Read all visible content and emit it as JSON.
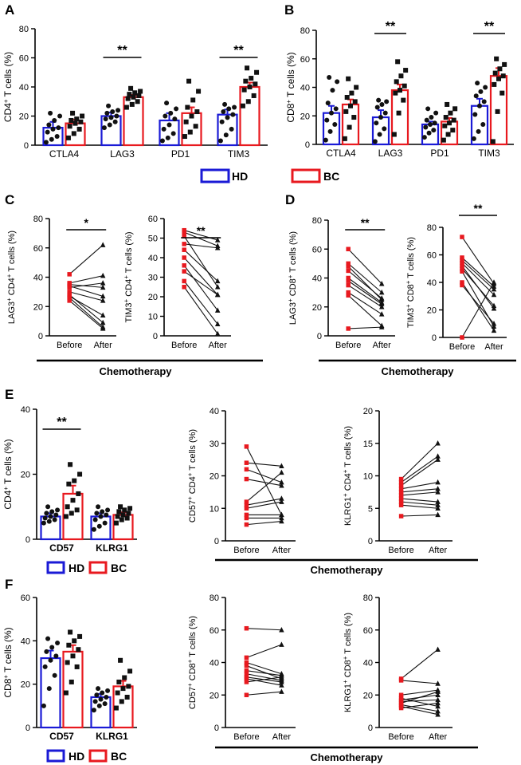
{
  "colors": {
    "hd": "#1a1ad6",
    "bc": "#e8191f",
    "dark": "#111111"
  },
  "chart_data": [
    {
      "type": "bar",
      "panel": "A",
      "ylabel": "CD4+ T cells (%)",
      "ylabel_base": "CD4",
      "ylabel_sup": "+",
      "ylabel_rest": " T cells (%)",
      "ylim": [
        0,
        80
      ],
      "yticks": [
        0,
        20,
        40,
        60,
        80
      ],
      "categories": [
        "CTLA4",
        "LAG3",
        "PD1",
        "TIM3"
      ],
      "series": [
        {
          "name": "HD",
          "values": [
            12,
            20,
            17,
            21
          ],
          "sem": [
            4,
            2.5,
            5,
            3.5
          ],
          "points": [
            [
              2,
              4,
              6,
              9,
              11,
              12,
              14,
              17,
              20,
              22
            ],
            [
              12,
              14,
              16,
              18,
              19,
              20,
              22,
              23,
              24,
              27
            ],
            [
              3,
              5,
              8,
              11,
              14,
              18,
              20,
              22,
              25,
              29
            ],
            [
              3,
              7,
              11,
              16,
              19,
              21,
              23,
              25,
              26,
              28
            ]
          ]
        },
        {
          "name": "BC",
          "values": [
            15,
            33,
            22,
            40
          ],
          "sem": [
            2.5,
            1.5,
            4,
            3
          ],
          "points": [
            [
              5,
              8,
              11,
              13,
              15,
              16,
              17,
              18,
              20,
              22
            ],
            [
              26,
              28,
              30,
              32,
              33,
              34,
              35,
              36,
              37,
              39
            ],
            [
              6,
              9,
              13,
              16,
              20,
              23,
              26,
              31,
              37,
              44
            ],
            [
              27,
              30,
              34,
              38,
              40,
              42,
              44,
              46,
              50,
              53
            ]
          ]
        }
      ],
      "annotations": [
        {
          "group": "LAG3",
          "text": "**"
        },
        {
          "group": "TIM3",
          "text": "**"
        }
      ]
    },
    {
      "type": "bar",
      "panel": "B",
      "ylabel": "CD8+ T cells (%)",
      "ylabel_base": "CD8",
      "ylabel_sup": "+",
      "ylabel_rest": " T cells (%)",
      "ylim": [
        0,
        80
      ],
      "yticks": [
        0,
        20,
        40,
        60,
        80
      ],
      "categories": [
        "CTLA4",
        "LAG3",
        "PD1",
        "TIM3"
      ],
      "series": [
        {
          "name": "HD",
          "values": [
            22,
            19,
            14,
            27
          ],
          "sem": [
            5,
            5,
            2,
            5
          ],
          "points": [
            [
              3,
              9,
              14,
              17,
              22,
              25,
              29,
              38,
              44,
              47
            ],
            [
              2,
              7,
              11,
              15,
              19,
              22,
              26,
              28,
              30,
              31
            ],
            [
              5,
              8,
              10,
              12,
              14,
              15,
              17,
              19,
              22,
              25
            ],
            [
              4,
              9,
              14,
              21,
              27,
              30,
              34,
              37,
              40,
              43
            ]
          ]
        },
        {
          "name": "BC",
          "values": [
            28,
            38,
            16,
            48
          ],
          "sem": [
            3.5,
            4,
            2.5,
            5.5
          ],
          "points": [
            [
              4,
              12,
              19,
              23,
              27,
              30,
              33,
              36,
              40,
              46
            ],
            [
              7,
              22,
              31,
              36,
              38,
              41,
              44,
              48,
              52,
              58
            ],
            [
              3,
              7,
              10,
              13,
              15,
              17,
              19,
              22,
              25,
              28
            ],
            [
              2,
              23,
              36,
              42,
              46,
              48,
              50,
              53,
              56,
              60
            ]
          ]
        }
      ],
      "annotations": [
        {
          "group": "LAG3",
          "text": "**"
        },
        {
          "group": "TIM3",
          "text": "**"
        }
      ]
    },
    {
      "type": "paired",
      "panel": "C1",
      "ylabel": "LAG3+ CD4+ T cells (%)",
      "ylabel_parts": [
        [
          "LAG3",
          ""
        ],
        [
          "+",
          1
        ],
        [
          " CD4",
          ""
        ],
        [
          "+",
          1
        ],
        [
          " T cells (%)",
          ""
        ]
      ],
      "ylim": [
        0,
        80
      ],
      "yticks": [
        0,
        20,
        40,
        60,
        80
      ],
      "x": [
        "Before",
        "After"
      ],
      "sig": "*",
      "pairs": [
        [
          42,
          62
        ],
        [
          36,
          41
        ],
        [
          35,
          33
        ],
        [
          34,
          27
        ],
        [
          33,
          36
        ],
        [
          30,
          24
        ],
        [
          28,
          9
        ],
        [
          27,
          14
        ],
        [
          26,
          6
        ],
        [
          24,
          5
        ]
      ]
    },
    {
      "type": "paired",
      "panel": "C2",
      "ylabel": "TIM3+ CD4+ T cells (%)",
      "ylabel_parts": [
        [
          "TIM3",
          ""
        ],
        [
          "+",
          1
        ],
        [
          " CD4",
          ""
        ],
        [
          "+",
          1
        ],
        [
          " T cells (%)",
          ""
        ]
      ],
      "ylim": [
        0,
        60
      ],
      "yticks": [
        0,
        10,
        20,
        30,
        40,
        50,
        60
      ],
      "x": [
        "Before",
        "After"
      ],
      "sig": "**",
      "pairs": [
        [
          54,
          49
        ],
        [
          53,
          46
        ],
        [
          51,
          25
        ],
        [
          47,
          45
        ],
        [
          44,
          28
        ],
        [
          40,
          21
        ],
        [
          36,
          13
        ],
        [
          33,
          21
        ],
        [
          28,
          6
        ],
        [
          25,
          1
        ]
      ]
    },
    {
      "type": "paired",
      "panel": "D1",
      "ylabel": "LAG3+ CD8+ T cells (%)",
      "ylabel_parts": [
        [
          "LAG3",
          ""
        ],
        [
          "+",
          1
        ],
        [
          " CD8",
          ""
        ],
        [
          "+",
          1
        ],
        [
          " T cells (%)",
          ""
        ]
      ],
      "ylim": [
        0,
        80
      ],
      "yticks": [
        0,
        20,
        40,
        60,
        80
      ],
      "x": [
        "Before",
        "After"
      ],
      "sig": "**",
      "pairs": [
        [
          60,
          36
        ],
        [
          50,
          30
        ],
        [
          48,
          25
        ],
        [
          45,
          26
        ],
        [
          40,
          23
        ],
        [
          38,
          22
        ],
        [
          35,
          20
        ],
        [
          30,
          15
        ],
        [
          28,
          7
        ],
        [
          5,
          6
        ]
      ]
    },
    {
      "type": "paired",
      "panel": "D2",
      "ylabel": "TIM3+ CD8+ T cells (%)",
      "ylabel_parts": [
        [
          "TIM3",
          ""
        ],
        [
          "+",
          1
        ],
        [
          " CD8",
          ""
        ],
        [
          "+",
          1
        ],
        [
          " T cells (%)",
          ""
        ]
      ],
      "ylim": [
        0,
        80
      ],
      "yticks": [
        0,
        20,
        40,
        60,
        80
      ],
      "x": [
        "Before",
        "After"
      ],
      "sig": "**",
      "pairs": [
        [
          73,
          39
        ],
        [
          58,
          37
        ],
        [
          56,
          35
        ],
        [
          54,
          31
        ],
        [
          52,
          21
        ],
        [
          50,
          23
        ],
        [
          48,
          8
        ],
        [
          40,
          5
        ],
        [
          38,
          10
        ],
        [
          0,
          40
        ]
      ]
    },
    {
      "type": "bar",
      "panel": "E",
      "ylabel": "CD4+ T cells (%)",
      "ylabel_base": "CD4",
      "ylabel_sup": "+",
      "ylabel_rest": " T cells (%)",
      "ylim": [
        0,
        40
      ],
      "yticks": [
        0,
        20,
        40
      ],
      "categories": [
        "CD57",
        "KLRG1"
      ],
      "series": [
        {
          "name": "HD",
          "values": [
            7,
            7
          ],
          "sem": [
            1,
            1
          ],
          "points": [
            [
              5,
              5.5,
              6,
              6.5,
              7,
              7.5,
              8,
              8.5,
              9,
              10
            ],
            [
              3,
              4,
              5,
              6,
              7,
              7.5,
              8,
              8.5,
              9,
              10
            ]
          ]
        },
        {
          "name": "BC",
          "values": [
            14,
            7.5
          ],
          "sem": [
            2.5,
            0.8
          ],
          "points": [
            [
              7,
              8,
              9,
              10,
              12,
              14,
              17,
              18,
              20,
              23
            ],
            [
              5,
              6,
              6.5,
              7,
              7.5,
              8,
              8.5,
              9,
              9.5,
              10
            ]
          ]
        }
      ],
      "annotations": [
        {
          "group": "CD57",
          "text": "**"
        }
      ]
    },
    {
      "type": "paired",
      "panel": "E1",
      "ylabel": "CD57+ CD4+ T cells (%)",
      "ylabel_parts": [
        [
          "CD57",
          ""
        ],
        [
          "+",
          1
        ],
        [
          " CD4",
          ""
        ],
        [
          "+",
          1
        ],
        [
          " T cells (%)",
          ""
        ]
      ],
      "ylim": [
        0,
        40
      ],
      "yticks": [
        0,
        10,
        20,
        30,
        40
      ],
      "x": [
        "Before",
        "After"
      ],
      "sig": "",
      "pairs": [
        [
          29,
          8
        ],
        [
          24,
          23
        ],
        [
          22,
          18
        ],
        [
          19,
          17
        ],
        [
          12,
          21
        ],
        [
          11,
          13
        ],
        [
          10,
          12
        ],
        [
          8,
          8
        ],
        [
          7,
          7
        ],
        [
          5,
          6
        ]
      ]
    },
    {
      "type": "paired",
      "panel": "E2",
      "ylabel": "KLRG1+ CD4+ T cells (%)",
      "ylabel_parts": [
        [
          "KLRG1",
          ""
        ],
        [
          "+",
          1
        ],
        [
          " CD4",
          ""
        ],
        [
          "+",
          1
        ],
        [
          " T cells (%)",
          ""
        ]
      ],
      "ylim": [
        0,
        20
      ],
      "yticks": [
        0,
        5,
        10,
        15,
        20
      ],
      "x": [
        "Before",
        "After"
      ],
      "sig": "",
      "pairs": [
        [
          9.5,
          15
        ],
        [
          9,
          13
        ],
        [
          8.5,
          12.5
        ],
        [
          8,
          9
        ],
        [
          7.5,
          8
        ],
        [
          7,
          7.5
        ],
        [
          6.5,
          6
        ],
        [
          6,
          5.5
        ],
        [
          5.5,
          5
        ],
        [
          3.8,
          4
        ]
      ]
    },
    {
      "type": "bar",
      "panel": "F",
      "ylabel": "CD8+ T cells (%)",
      "ylabel_base": "CD8",
      "ylabel_sup": "+",
      "ylabel_rest": " T cells (%)",
      "ylim": [
        0,
        60
      ],
      "yticks": [
        0,
        20,
        40,
        60
      ],
      "categories": [
        "CD57",
        "KLRG1"
      ],
      "series": [
        {
          "name": "HD",
          "values": [
            32,
            14
          ],
          "sem": [
            3.5,
            1.5
          ],
          "points": [
            [
              10,
              18,
              24,
              28,
              31,
              33,
              35,
              37,
              39,
              41
            ],
            [
              8,
              10,
              11,
              12,
              13,
              14,
              15,
              16,
              17,
              18
            ]
          ]
        },
        {
          "name": "BC",
          "values": [
            35,
            19
          ],
          "sem": [
            3,
            2.5
          ],
          "points": [
            [
              16,
              21,
              28,
              30,
              33,
              36,
              38,
              40,
              42,
              44
            ],
            [
              9,
              12,
              14,
              16,
              18,
              19,
              21,
              23,
              26,
              31
            ]
          ]
        }
      ],
      "annotations": []
    },
    {
      "type": "paired",
      "panel": "F1",
      "ylabel": "CD57+ CD8+ T cells (%)",
      "ylabel_parts": [
        [
          "CD57",
          ""
        ],
        [
          "+",
          1
        ],
        [
          " CD8",
          ""
        ],
        [
          "+",
          1
        ],
        [
          " T cells (%)",
          ""
        ]
      ],
      "ylim": [
        0,
        80
      ],
      "yticks": [
        0,
        20,
        40,
        60,
        80
      ],
      "x": [
        "Before",
        "After"
      ],
      "sig": "",
      "pairs": [
        [
          61,
          60
        ],
        [
          43,
          51
        ],
        [
          40,
          33
        ],
        [
          38,
          30
        ],
        [
          35,
          32
        ],
        [
          33,
          29
        ],
        [
          31,
          28
        ],
        [
          30,
          26
        ],
        [
          28,
          31
        ],
        [
          20,
          22
        ]
      ]
    },
    {
      "type": "paired",
      "panel": "F2",
      "ylabel": "KLRG1+ CD8+ T cells (%)",
      "ylabel_parts": [
        [
          "KLRG1",
          ""
        ],
        [
          "+",
          1
        ],
        [
          " CD8",
          ""
        ],
        [
          "+",
          1
        ],
        [
          " T cells (%)",
          ""
        ]
      ],
      "ylim": [
        0,
        80
      ],
      "yticks": [
        0,
        20,
        40,
        60,
        80
      ],
      "x": [
        "Before",
        "After"
      ],
      "sig": "",
      "pairs": [
        [
          30,
          48
        ],
        [
          29,
          27
        ],
        [
          20,
          23
        ],
        [
          18,
          13
        ],
        [
          17,
          20
        ],
        [
          16,
          17
        ],
        [
          15,
          22
        ],
        [
          14,
          10
        ],
        [
          13,
          8
        ],
        [
          12,
          15
        ]
      ]
    }
  ],
  "panel_letters": [
    "A",
    "B",
    "C",
    "D",
    "E",
    "F"
  ],
  "legend": {
    "hd": "HD",
    "bc": "BC"
  },
  "chemo_label": "Chemotherapy"
}
